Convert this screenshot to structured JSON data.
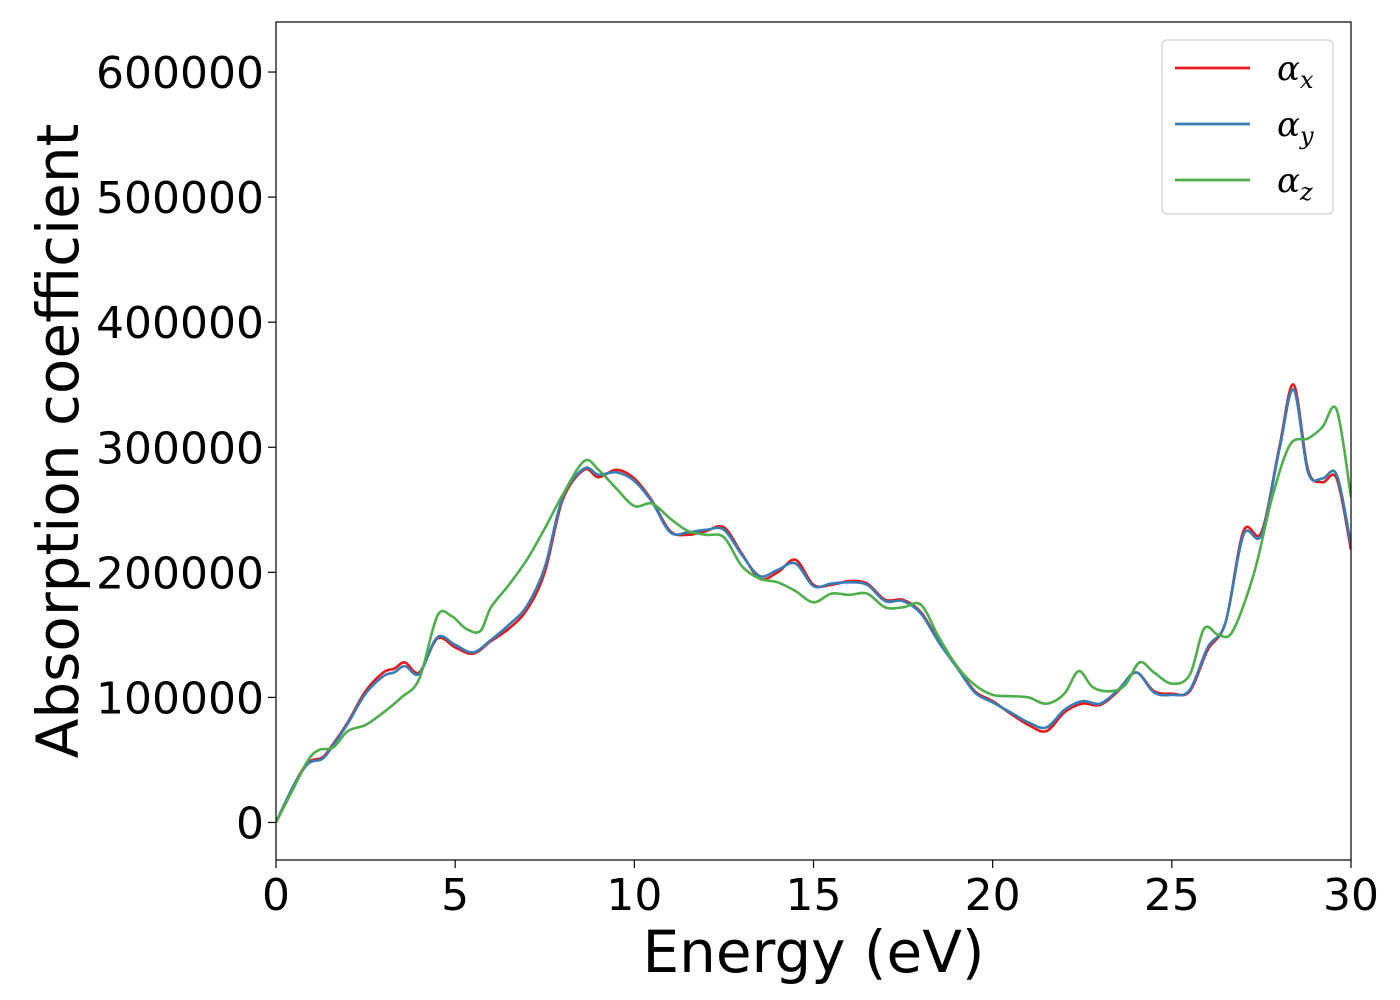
{
  "chart_data": {
    "type": "line",
    "title": "",
    "xlabel": "Energy (eV)",
    "ylabel": "Absorption coefficient",
    "xlim": [
      0,
      30
    ],
    "ylim": [
      -30000,
      640000
    ],
    "xticks": [
      "0",
      "5",
      "10",
      "15",
      "20",
      "25",
      "30"
    ],
    "yticks": [
      "0",
      "100000",
      "200000",
      "300000",
      "400000",
      "500000",
      "600000"
    ],
    "grid": false,
    "legend_position": "top-right",
    "series": [
      {
        "name": "α",
        "subscript": "x",
        "color": "#e41a1c",
        "x": [
          0,
          0.5,
          0.9,
          1.3,
          1.6,
          2.0,
          2.5,
          3.0,
          3.3,
          3.6,
          4.0,
          4.5,
          5.0,
          5.5,
          6.0,
          6.5,
          7.0,
          7.5,
          8.0,
          8.6,
          9.0,
          9.5,
          10.0,
          10.5,
          11.0,
          11.5,
          12.0,
          12.5,
          13.0,
          13.5,
          14.0,
          14.5,
          15.0,
          15.5,
          16.0,
          16.5,
          17.0,
          17.5,
          18.0,
          18.5,
          19.0,
          19.5,
          20.0,
          20.5,
          21.0,
          21.5,
          22.0,
          22.5,
          23.0,
          23.5,
          24.0,
          24.5,
          25.0,
          25.5,
          26.0,
          26.5,
          27.0,
          27.5,
          28.0,
          28.4,
          28.8,
          29.2,
          29.6,
          30.0
        ],
        "y": [
          0,
          30000,
          48000,
          52000,
          63000,
          80000,
          105000,
          120000,
          123000,
          128000,
          120000,
          147000,
          140000,
          135000,
          145000,
          155000,
          170000,
          200000,
          258000,
          282000,
          276000,
          282000,
          275000,
          257000,
          233000,
          230000,
          233000,
          236000,
          215000,
          195000,
          200000,
          210000,
          190000,
          190000,
          193000,
          191000,
          178000,
          178000,
          168000,
          145000,
          125000,
          105000,
          97000,
          87000,
          78000,
          73000,
          88000,
          95000,
          94000,
          105000,
          120000,
          105000,
          103000,
          105000,
          138000,
          160000,
          233000,
          232000,
          300000,
          350000,
          282000,
          272000,
          275000,
          218000
        ]
      },
      {
        "name": "α",
        "subscript": "y",
        "color": "#377eb8",
        "x": [
          0,
          0.5,
          0.9,
          1.3,
          1.6,
          2.0,
          2.5,
          3.0,
          3.3,
          3.6,
          4.0,
          4.5,
          5.0,
          5.5,
          6.0,
          6.5,
          7.0,
          7.5,
          8.0,
          8.6,
          9.0,
          9.5,
          10.0,
          10.5,
          11.0,
          11.5,
          12.0,
          12.5,
          13.0,
          13.5,
          14.0,
          14.5,
          15.0,
          15.5,
          16.0,
          16.5,
          17.0,
          17.5,
          18.0,
          18.5,
          19.0,
          19.5,
          20.0,
          20.5,
          21.0,
          21.5,
          22.0,
          22.5,
          23.0,
          23.5,
          24.0,
          24.5,
          25.0,
          25.5,
          26.0,
          26.5,
          27.0,
          27.5,
          28.0,
          28.4,
          28.8,
          29.2,
          29.6,
          30.0
        ],
        "y": [
          0,
          30000,
          47000,
          51000,
          62000,
          79000,
          103000,
          117000,
          120000,
          125000,
          119000,
          148000,
          142000,
          136000,
          146000,
          158000,
          173000,
          204000,
          260000,
          283000,
          278000,
          280000,
          273000,
          256000,
          232000,
          232000,
          234000,
          234000,
          214000,
          197000,
          202000,
          207000,
          189000,
          191000,
          192000,
          190000,
          177000,
          177000,
          167000,
          144000,
          124000,
          104000,
          96000,
          88000,
          80000,
          76000,
          90000,
          97000,
          95000,
          106000,
          120000,
          104000,
          102000,
          106000,
          140000,
          160000,
          230000,
          230000,
          298000,
          346000,
          280000,
          275000,
          278000,
          222000
        ]
      },
      {
        "name": "α",
        "subscript": "z",
        "color": "#4daf4a",
        "x": [
          0,
          0.5,
          0.9,
          1.2,
          1.6,
          2.0,
          2.5,
          3.0,
          3.5,
          4.0,
          4.5,
          4.9,
          5.3,
          5.7,
          6.0,
          6.5,
          7.0,
          7.5,
          8.0,
          8.6,
          9.0,
          9.5,
          10.0,
          10.5,
          11.0,
          11.5,
          12.0,
          12.5,
          13.0,
          13.5,
          14.0,
          14.5,
          15.0,
          15.5,
          16.0,
          16.5,
          17.0,
          17.5,
          18.0,
          18.5,
          19.0,
          19.5,
          20.0,
          20.5,
          21.0,
          21.5,
          22.0,
          22.4,
          22.8,
          23.3,
          23.7,
          24.1,
          24.5,
          25.0,
          25.5,
          25.9,
          26.3,
          26.7,
          27.3,
          27.8,
          28.3,
          28.8,
          29.2,
          29.6,
          30.0
        ],
        "y": [
          0,
          28000,
          50000,
          58000,
          60000,
          73000,
          78000,
          88000,
          100000,
          115000,
          165000,
          165000,
          155000,
          153000,
          172000,
          190000,
          210000,
          235000,
          262000,
          289000,
          282000,
          267000,
          253000,
          255000,
          243000,
          233000,
          230000,
          228000,
          205000,
          195000,
          192000,
          185000,
          176000,
          183000,
          182000,
          183000,
          172000,
          172000,
          174000,
          148000,
          125000,
          110000,
          102000,
          101000,
          100000,
          95000,
          103000,
          121000,
          108000,
          105000,
          110000,
          128000,
          120000,
          111000,
          118000,
          155000,
          150000,
          153000,
          200000,
          260000,
          302000,
          307000,
          316000,
          330000,
          260000
        ]
      }
    ]
  }
}
